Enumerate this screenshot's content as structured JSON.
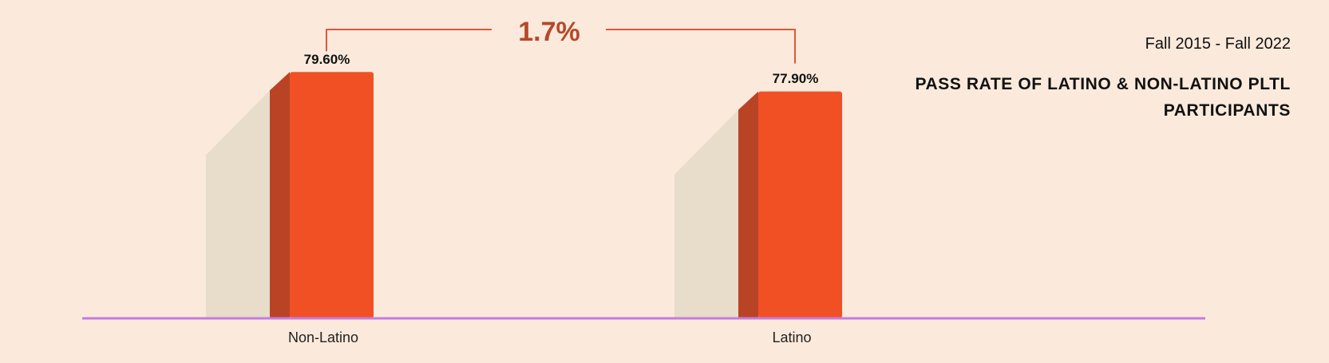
{
  "chart_data": {
    "type": "bar",
    "subtitle": "Fall 2015 - Fall 2022",
    "title": "PASS RATE OF LATINO & NON-LATINO PLTL PARTICIPANTS",
    "annotation": "1.7%",
    "categories": [
      "Non-Latino",
      "Latino"
    ],
    "values": [
      79.6,
      77.9
    ],
    "value_labels": [
      "79.60%",
      "77.90%"
    ],
    "color": "#f15025",
    "ylim": [
      58,
      82
    ]
  }
}
